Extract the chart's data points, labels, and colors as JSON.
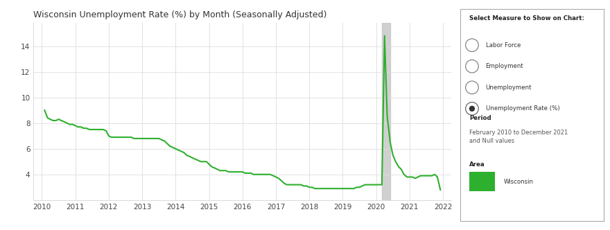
{
  "title": "Wisconsin Unemployment Rate (%) by Month (Seasonally Adjusted)",
  "line_color": "#2db02d",
  "line_width": 1.5,
  "background_color": "#ffffff",
  "grid_color": "#dddddd",
  "shade_color": "#c8c8c8",
  "shade_xmin": 2020.17,
  "shade_xmax": 2020.42,
  "ylim": [
    2,
    15.8
  ],
  "yticks": [
    4,
    6,
    8,
    10,
    12,
    14
  ],
  "xlim_start": 2009.75,
  "xlim_end": 2022.25,
  "xtick_labels": [
    "2010",
    "2011",
    "2012",
    "2013",
    "2014",
    "2015",
    "2016",
    "2017",
    "2018",
    "2019",
    "2020",
    "2021",
    "2022"
  ],
  "xtick_positions": [
    2010,
    2011,
    2012,
    2013,
    2014,
    2015,
    2016,
    2017,
    2018,
    2019,
    2020,
    2021,
    2022
  ],
  "sidebar_title": "Select Measure to Show on Chart:",
  "sidebar_options": [
    "Labor Force",
    "Employment",
    "Unemployment",
    "Unemployment Rate (%)"
  ],
  "sidebar_selected": 3,
  "period_label": "Period",
  "period_text": "February 2010 to December 2021\nand Null values",
  "area_label": "Area",
  "area_name": "Wisconsin",
  "area_color": "#2db02d",
  "data": [
    [
      2010.08,
      9.0
    ],
    [
      2010.17,
      8.4
    ],
    [
      2010.25,
      8.3
    ],
    [
      2010.33,
      8.2
    ],
    [
      2010.42,
      8.2
    ],
    [
      2010.5,
      8.3
    ],
    [
      2010.58,
      8.2
    ],
    [
      2010.67,
      8.1
    ],
    [
      2010.75,
      8.0
    ],
    [
      2010.83,
      7.9
    ],
    [
      2010.92,
      7.9
    ],
    [
      2011.0,
      7.8
    ],
    [
      2011.08,
      7.7
    ],
    [
      2011.17,
      7.7
    ],
    [
      2011.25,
      7.6
    ],
    [
      2011.33,
      7.6
    ],
    [
      2011.42,
      7.5
    ],
    [
      2011.5,
      7.5
    ],
    [
      2011.58,
      7.5
    ],
    [
      2011.67,
      7.5
    ],
    [
      2011.75,
      7.5
    ],
    [
      2011.83,
      7.5
    ],
    [
      2011.92,
      7.4
    ],
    [
      2012.0,
      7.0
    ],
    [
      2012.08,
      6.9
    ],
    [
      2012.17,
      6.9
    ],
    [
      2012.25,
      6.9
    ],
    [
      2012.33,
      6.9
    ],
    [
      2012.42,
      6.9
    ],
    [
      2012.5,
      6.9
    ],
    [
      2012.58,
      6.9
    ],
    [
      2012.67,
      6.9
    ],
    [
      2012.75,
      6.8
    ],
    [
      2012.83,
      6.8
    ],
    [
      2012.92,
      6.8
    ],
    [
      2013.0,
      6.8
    ],
    [
      2013.08,
      6.8
    ],
    [
      2013.17,
      6.8
    ],
    [
      2013.25,
      6.8
    ],
    [
      2013.33,
      6.8
    ],
    [
      2013.42,
      6.8
    ],
    [
      2013.5,
      6.8
    ],
    [
      2013.58,
      6.7
    ],
    [
      2013.67,
      6.6
    ],
    [
      2013.75,
      6.4
    ],
    [
      2013.83,
      6.2
    ],
    [
      2013.92,
      6.1
    ],
    [
      2014.0,
      6.0
    ],
    [
      2014.08,
      5.9
    ],
    [
      2014.17,
      5.8
    ],
    [
      2014.25,
      5.7
    ],
    [
      2014.33,
      5.5
    ],
    [
      2014.42,
      5.4
    ],
    [
      2014.5,
      5.3
    ],
    [
      2014.58,
      5.2
    ],
    [
      2014.67,
      5.1
    ],
    [
      2014.75,
      5.0
    ],
    [
      2014.83,
      5.0
    ],
    [
      2014.92,
      5.0
    ],
    [
      2015.0,
      4.8
    ],
    [
      2015.08,
      4.6
    ],
    [
      2015.17,
      4.5
    ],
    [
      2015.25,
      4.4
    ],
    [
      2015.33,
      4.3
    ],
    [
      2015.42,
      4.3
    ],
    [
      2015.5,
      4.3
    ],
    [
      2015.58,
      4.2
    ],
    [
      2015.67,
      4.2
    ],
    [
      2015.75,
      4.2
    ],
    [
      2015.83,
      4.2
    ],
    [
      2015.92,
      4.2
    ],
    [
      2016.0,
      4.2
    ],
    [
      2016.08,
      4.1
    ],
    [
      2016.17,
      4.1
    ],
    [
      2016.25,
      4.1
    ],
    [
      2016.33,
      4.0
    ],
    [
      2016.42,
      4.0
    ],
    [
      2016.5,
      4.0
    ],
    [
      2016.58,
      4.0
    ],
    [
      2016.67,
      4.0
    ],
    [
      2016.75,
      4.0
    ],
    [
      2016.83,
      4.0
    ],
    [
      2016.92,
      3.9
    ],
    [
      2017.0,
      3.8
    ],
    [
      2017.08,
      3.7
    ],
    [
      2017.17,
      3.5
    ],
    [
      2017.25,
      3.3
    ],
    [
      2017.33,
      3.2
    ],
    [
      2017.42,
      3.2
    ],
    [
      2017.5,
      3.2
    ],
    [
      2017.58,
      3.2
    ],
    [
      2017.67,
      3.2
    ],
    [
      2017.75,
      3.2
    ],
    [
      2017.83,
      3.1
    ],
    [
      2017.92,
      3.1
    ],
    [
      2018.0,
      3.0
    ],
    [
      2018.08,
      3.0
    ],
    [
      2018.17,
      2.9
    ],
    [
      2018.25,
      2.9
    ],
    [
      2018.33,
      2.9
    ],
    [
      2018.42,
      2.9
    ],
    [
      2018.5,
      2.9
    ],
    [
      2018.58,
      2.9
    ],
    [
      2018.67,
      2.9
    ],
    [
      2018.75,
      2.9
    ],
    [
      2018.83,
      2.9
    ],
    [
      2018.92,
      2.9
    ],
    [
      2019.0,
      2.9
    ],
    [
      2019.08,
      2.9
    ],
    [
      2019.17,
      2.9
    ],
    [
      2019.25,
      2.9
    ],
    [
      2019.33,
      2.9
    ],
    [
      2019.42,
      3.0
    ],
    [
      2019.5,
      3.0
    ],
    [
      2019.58,
      3.1
    ],
    [
      2019.67,
      3.2
    ],
    [
      2019.75,
      3.2
    ],
    [
      2019.83,
      3.2
    ],
    [
      2019.92,
      3.2
    ],
    [
      2020.0,
      3.2
    ],
    [
      2020.08,
      3.2
    ],
    [
      2020.17,
      3.2
    ],
    [
      2020.25,
      14.8
    ],
    [
      2020.33,
      8.5
    ],
    [
      2020.42,
      6.5
    ],
    [
      2020.5,
      5.5
    ],
    [
      2020.58,
      5.0
    ],
    [
      2020.67,
      4.6
    ],
    [
      2020.75,
      4.4
    ],
    [
      2020.83,
      4.0
    ],
    [
      2020.92,
      3.8
    ],
    [
      2021.0,
      3.8
    ],
    [
      2021.08,
      3.8
    ],
    [
      2021.17,
      3.7
    ],
    [
      2021.25,
      3.8
    ],
    [
      2021.33,
      3.9
    ],
    [
      2021.42,
      3.9
    ],
    [
      2021.5,
      3.9
    ],
    [
      2021.58,
      3.9
    ],
    [
      2021.67,
      3.9
    ],
    [
      2021.75,
      4.0
    ],
    [
      2021.83,
      3.8
    ],
    [
      2021.92,
      2.8
    ]
  ]
}
